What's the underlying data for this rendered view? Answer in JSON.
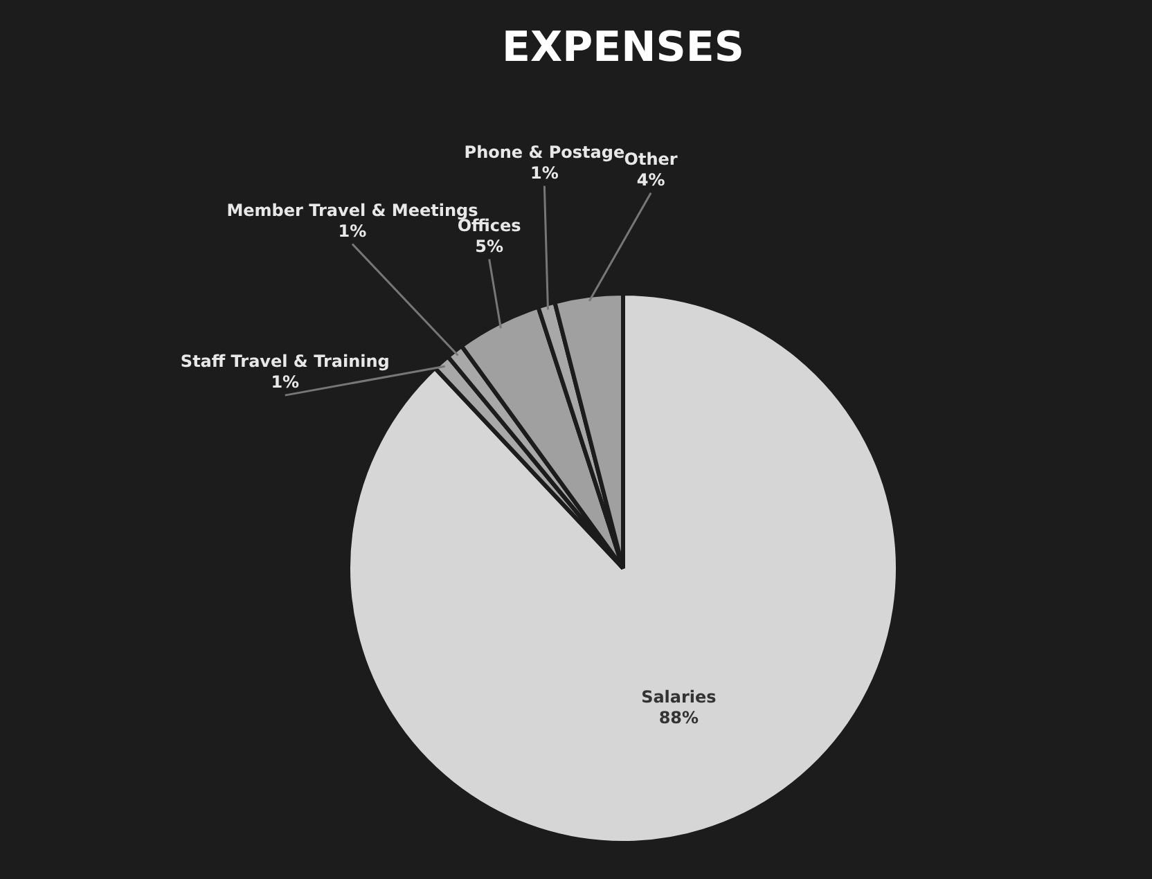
{
  "chart_data": {
    "type": "pie",
    "title": "EXPENSES",
    "categories": [
      "Salaries",
      "Staff Travel & Training",
      "Member Travel & Meetings",
      "Offices",
      "Phone & Postage",
      "Other"
    ],
    "values": [
      88,
      1,
      1,
      5,
      1,
      4
    ],
    "value_labels": [
      "88%",
      "1%",
      "1%",
      "5%",
      "1%",
      "4%"
    ],
    "colors": [
      "#d6d6d6",
      "#a8a8a8",
      "#a8a8a8",
      "#a0a0a0",
      "#a8a8a8",
      "#a0a0a0"
    ],
    "legend": false
  }
}
